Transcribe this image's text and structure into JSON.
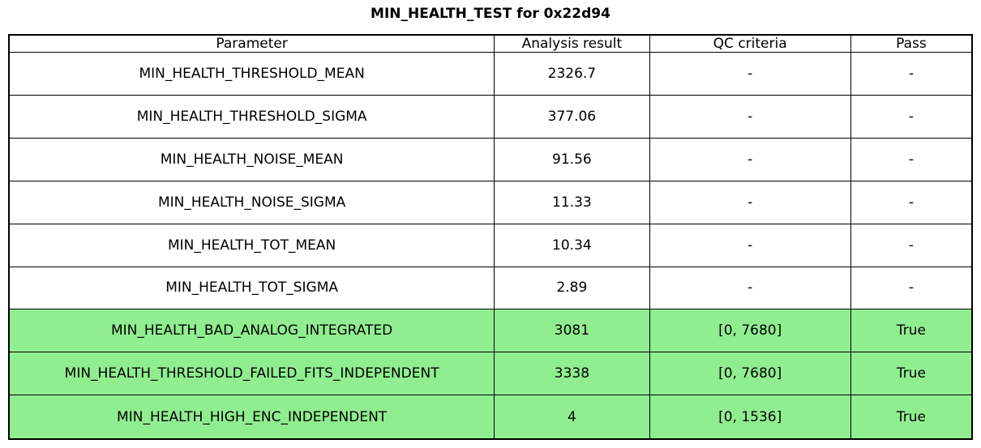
{
  "title": "MIN_HEALTH_TEST for 0x22d94",
  "colors": {
    "pass_row_background": "#90ee90",
    "border": "#000000",
    "background": "#ffffff",
    "text": "#000000"
  },
  "chart_data": {
    "type": "table",
    "title": "MIN_HEALTH_TEST for 0x22d94",
    "columns": [
      "Parameter",
      "Analysis result",
      "QC criteria",
      "Pass"
    ],
    "rows": [
      {
        "cells": [
          "MIN_HEALTH_THRESHOLD_MEAN",
          "2326.7",
          "-",
          "-"
        ],
        "pass_highlight": false
      },
      {
        "cells": [
          "MIN_HEALTH_THRESHOLD_SIGMA",
          "377.06",
          "-",
          "-"
        ],
        "pass_highlight": false
      },
      {
        "cells": [
          "MIN_HEALTH_NOISE_MEAN",
          "91.56",
          "-",
          "-"
        ],
        "pass_highlight": false
      },
      {
        "cells": [
          "MIN_HEALTH_NOISE_SIGMA",
          "11.33",
          "-",
          "-"
        ],
        "pass_highlight": false
      },
      {
        "cells": [
          "MIN_HEALTH_TOT_MEAN",
          "10.34",
          "-",
          "-"
        ],
        "pass_highlight": false
      },
      {
        "cells": [
          "MIN_HEALTH_TOT_SIGMA",
          "2.89",
          "-",
          "-"
        ],
        "pass_highlight": false
      },
      {
        "cells": [
          "MIN_HEALTH_BAD_ANALOG_INTEGRATED",
          "3081",
          "[0, 7680]",
          "True"
        ],
        "pass_highlight": true
      },
      {
        "cells": [
          "MIN_HEALTH_THRESHOLD_FAILED_FITS_INDEPENDENT",
          "3338",
          "[0, 7680]",
          "True"
        ],
        "pass_highlight": true
      },
      {
        "cells": [
          "MIN_HEALTH_HIGH_ENC_INDEPENDENT",
          "4",
          "[0, 1536]",
          "True"
        ],
        "pass_highlight": true
      }
    ],
    "layout": {
      "legend": "none",
      "grid": "table-borders",
      "highlight_color": "#90ee90"
    }
  }
}
